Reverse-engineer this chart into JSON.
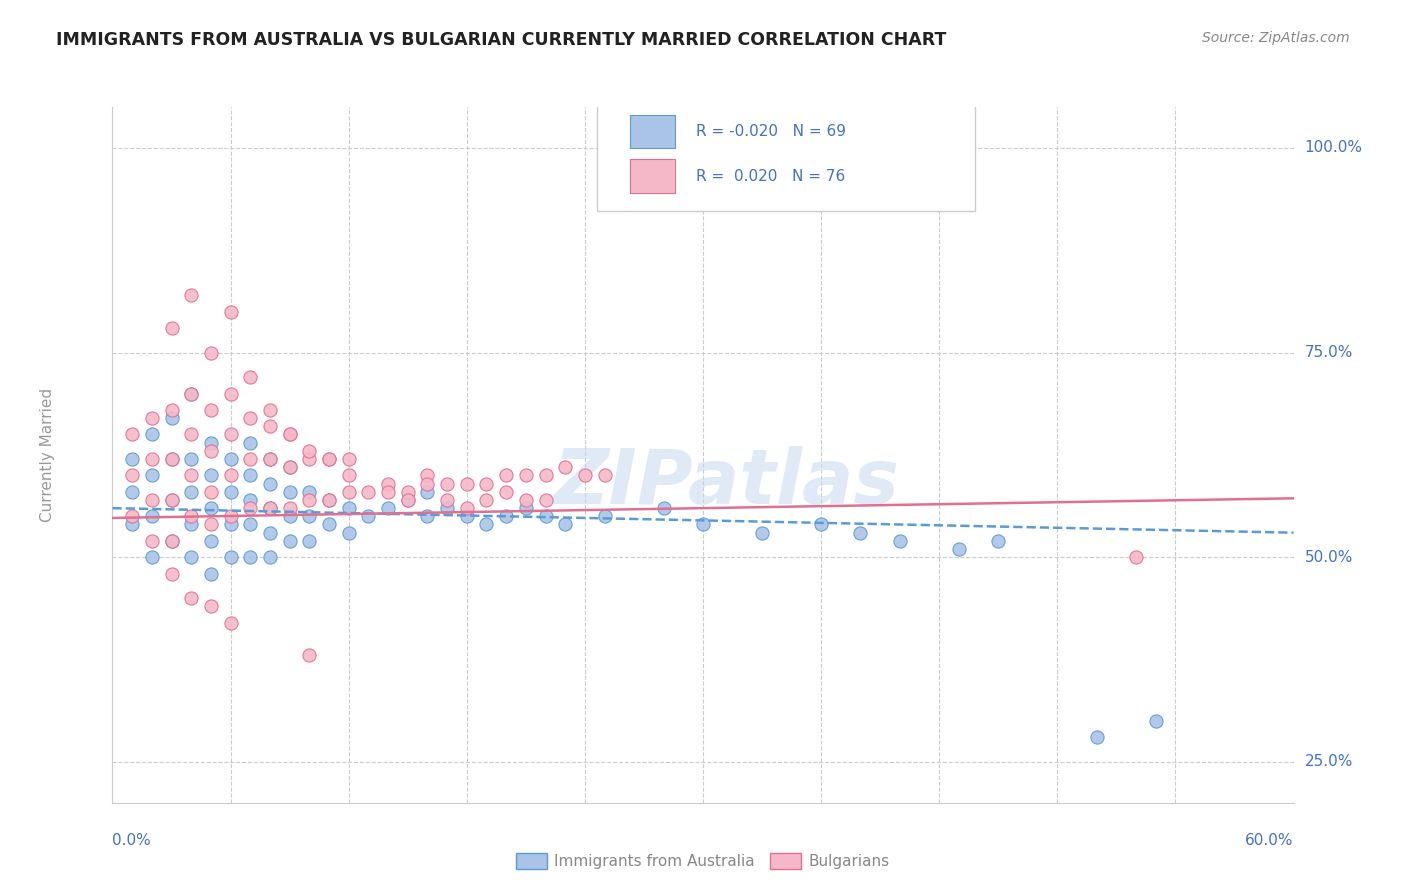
{
  "title": "IMMIGRANTS FROM AUSTRALIA VS BULGARIAN CURRENTLY MARRIED CORRELATION CHART",
  "source": "Source: ZipAtlas.com",
  "ylabel": "Currently Married",
  "xmin": 0.0,
  "xmax": 0.06,
  "ymin": 0.2,
  "ymax": 1.05,
  "yticks": [
    0.25,
    0.5,
    0.75,
    1.0
  ],
  "ytick_labels": [
    "25.0%",
    "50.0%",
    "75.0%",
    "100.0%"
  ],
  "color_blue": "#aac4e8",
  "color_pink": "#f5b8c8",
  "color_blue_dark": "#5b9bd5",
  "color_pink_dark": "#e07090",
  "color_text": "#4472c4",
  "watermark": "ZIPatlas",
  "blue_trend_x0": 0.0,
  "blue_trend_x1": 0.06,
  "blue_trend_y0": 0.56,
  "blue_trend_y1": 0.53,
  "pink_trend_x0": 0.0,
  "pink_trend_x1": 0.06,
  "pink_trend_y0": 0.548,
  "pink_trend_y1": 0.572,
  "blue_scatter_x": [
    0.001,
    0.001,
    0.001,
    0.002,
    0.002,
    0.002,
    0.002,
    0.003,
    0.003,
    0.003,
    0.003,
    0.004,
    0.004,
    0.004,
    0.004,
    0.004,
    0.005,
    0.005,
    0.005,
    0.005,
    0.005,
    0.006,
    0.006,
    0.006,
    0.006,
    0.007,
    0.007,
    0.007,
    0.007,
    0.007,
    0.008,
    0.008,
    0.008,
    0.008,
    0.008,
    0.009,
    0.009,
    0.009,
    0.009,
    0.01,
    0.01,
    0.01,
    0.011,
    0.011,
    0.012,
    0.012,
    0.013,
    0.014,
    0.015,
    0.016,
    0.016,
    0.017,
    0.018,
    0.019,
    0.02,
    0.021,
    0.022,
    0.023,
    0.025,
    0.028,
    0.03,
    0.033,
    0.036,
    0.038,
    0.04,
    0.043,
    0.045,
    0.05,
    0.053
  ],
  "blue_scatter_y": [
    0.54,
    0.58,
    0.62,
    0.5,
    0.55,
    0.6,
    0.65,
    0.52,
    0.57,
    0.62,
    0.67,
    0.5,
    0.54,
    0.58,
    0.62,
    0.7,
    0.48,
    0.52,
    0.56,
    0.6,
    0.64,
    0.5,
    0.54,
    0.58,
    0.62,
    0.5,
    0.54,
    0.57,
    0.6,
    0.64,
    0.5,
    0.53,
    0.56,
    0.59,
    0.62,
    0.52,
    0.55,
    0.58,
    0.61,
    0.52,
    0.55,
    0.58,
    0.54,
    0.57,
    0.53,
    0.56,
    0.55,
    0.56,
    0.57,
    0.55,
    0.58,
    0.56,
    0.55,
    0.54,
    0.55,
    0.56,
    0.55,
    0.54,
    0.55,
    0.56,
    0.54,
    0.53,
    0.54,
    0.53,
    0.52,
    0.51,
    0.52,
    0.28,
    0.3
  ],
  "pink_scatter_x": [
    0.001,
    0.001,
    0.001,
    0.002,
    0.002,
    0.002,
    0.002,
    0.003,
    0.003,
    0.003,
    0.003,
    0.004,
    0.004,
    0.004,
    0.004,
    0.005,
    0.005,
    0.005,
    0.005,
    0.006,
    0.006,
    0.006,
    0.006,
    0.007,
    0.007,
    0.007,
    0.008,
    0.008,
    0.008,
    0.009,
    0.009,
    0.009,
    0.01,
    0.01,
    0.011,
    0.011,
    0.012,
    0.012,
    0.013,
    0.014,
    0.015,
    0.016,
    0.017,
    0.018,
    0.019,
    0.02,
    0.021,
    0.022,
    0.023,
    0.024,
    0.025,
    0.003,
    0.004,
    0.005,
    0.006,
    0.007,
    0.008,
    0.009,
    0.01,
    0.011,
    0.012,
    0.014,
    0.015,
    0.016,
    0.017,
    0.018,
    0.019,
    0.02,
    0.021,
    0.022,
    0.003,
    0.004,
    0.005,
    0.006,
    0.052,
    0.01
  ],
  "pink_scatter_y": [
    0.55,
    0.6,
    0.65,
    0.52,
    0.57,
    0.62,
    0.67,
    0.52,
    0.57,
    0.62,
    0.68,
    0.55,
    0.6,
    0.65,
    0.7,
    0.54,
    0.58,
    0.63,
    0.68,
    0.55,
    0.6,
    0.65,
    0.7,
    0.56,
    0.62,
    0.67,
    0.56,
    0.62,
    0.66,
    0.56,
    0.61,
    0.65,
    0.57,
    0.62,
    0.57,
    0.62,
    0.58,
    0.62,
    0.58,
    0.59,
    0.58,
    0.6,
    0.59,
    0.59,
    0.59,
    0.6,
    0.6,
    0.6,
    0.61,
    0.6,
    0.6,
    0.78,
    0.82,
    0.75,
    0.8,
    0.72,
    0.68,
    0.65,
    0.63,
    0.62,
    0.6,
    0.58,
    0.57,
    0.59,
    0.57,
    0.56,
    0.57,
    0.58,
    0.57,
    0.57,
    0.48,
    0.45,
    0.44,
    0.42,
    0.5,
    0.38
  ]
}
